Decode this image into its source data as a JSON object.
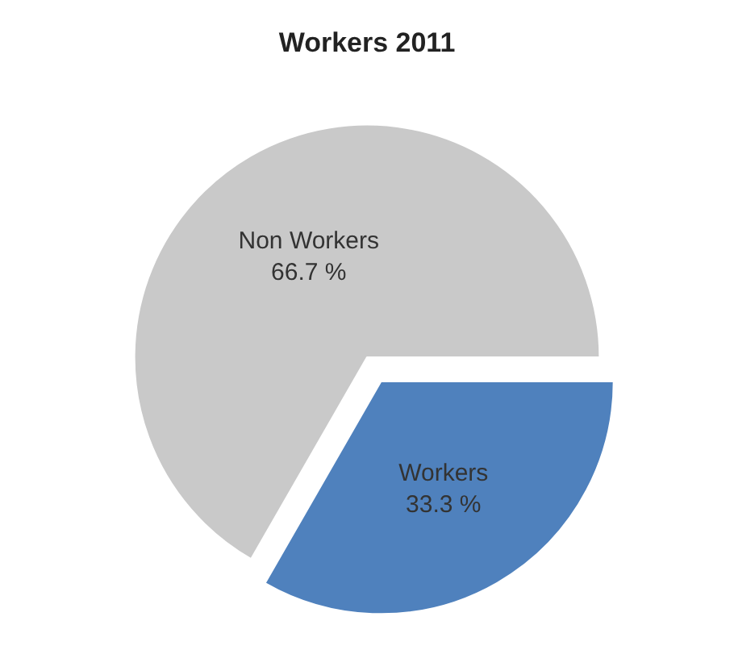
{
  "chart_data": {
    "type": "pie",
    "title": "Workers 2011",
    "categories": [
      "Workers",
      "Non Workers"
    ],
    "values": [
      33.3,
      66.7
    ],
    "value_labels": [
      "33.3 %",
      "66.7 %"
    ],
    "colors": [
      "#4f81bd",
      "#c9c9c9"
    ],
    "legend": false
  }
}
